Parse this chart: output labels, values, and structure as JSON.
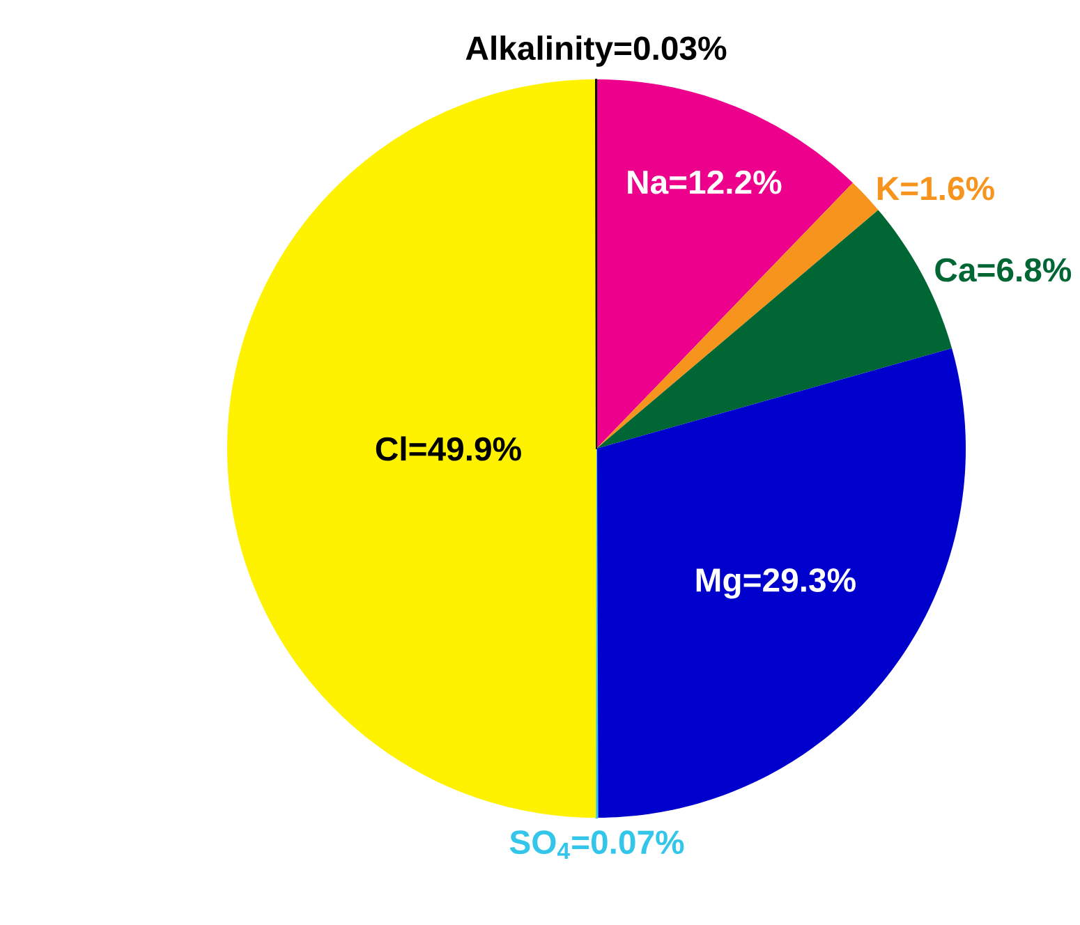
{
  "chart_data": {
    "type": "pie",
    "categories": [
      "Na=12.2%",
      "K=1.6%",
      "Ca=6.8%",
      "Mg=29.3%",
      "SO$_{4}$=0.07%",
      "Cl=49.9%",
      "Alkalinity=0.03%"
    ],
    "values": [
      12.2,
      1.6,
      6.8,
      29.3,
      0.07,
      49.9,
      0.03
    ],
    "colors": [
      "#ec008c",
      "#f7941d",
      "#006633",
      "#0000cc",
      "#33c6ea",
      "#fff200",
      "#000000"
    ]
  }
}
